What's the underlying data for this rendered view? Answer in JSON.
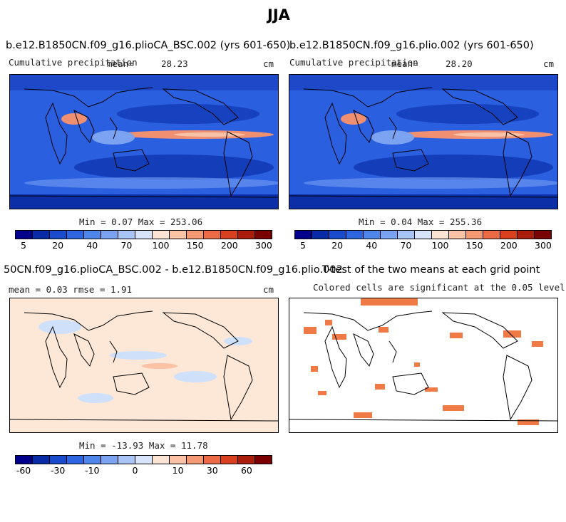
{
  "title": "JJA",
  "panels": {
    "p1": {
      "case": "b.e12.B1850CN.f09_g16.plioCA_BSC.002 (yrs 601-650)",
      "var": "Cumulative precipitation",
      "mean_label": "mean=",
      "mean": "28.23",
      "units": "cm",
      "minmax": "Min =   0.07 Max = 253.06"
    },
    "p2": {
      "case": "b.e12.B1850CN.f09_g16.plio.002 (yrs 601-650)",
      "var": "Cumulative precipitation",
      "mean_label": "mean=",
      "mean": "28.20",
      "units": "cm",
      "minmax": "Min =   0.04 Max = 255.36"
    },
    "p3": {
      "case": "50CN.f09_g16.plioCA_BSC.002 - b.e12.B1850CN.f09_g16.plio.002",
      "stats": "mean =    0.03    rmse =    1.91",
      "units": "cm",
      "minmax": "Min = -13.93 Max =  11.78"
    },
    "p4": {
      "case": "T-test of the two means at each grid point",
      "note": "Colored cells are significant at the 0.05 level"
    }
  },
  "colorbars": {
    "precip": {
      "colors": [
        "#00008b",
        "#0a2ba8",
        "#1a4bcc",
        "#2d66e0",
        "#4f86ec",
        "#7ba3f1",
        "#a9c4f6",
        "#d7e4fb",
        "#fde3d4",
        "#fbc2a5",
        "#f59974",
        "#ec6a45",
        "#d8401f",
        "#ab1d0b",
        "#7a0000"
      ],
      "ticks": [
        "5",
        "20",
        "40",
        "70",
        "100",
        "150",
        "200",
        "300"
      ]
    },
    "diff": {
      "colors": [
        "#00008b",
        "#0a2ba8",
        "#1a4bcc",
        "#2d66e0",
        "#4f86ec",
        "#7ba3f1",
        "#a9c4f6",
        "#d7e4fb",
        "#fde3d4",
        "#fbc2a5",
        "#f59974",
        "#ec6a45",
        "#d8401f",
        "#ab1d0b",
        "#7a0000"
      ],
      "ticks": [
        "-60",
        "-30",
        "-10",
        "0",
        "10",
        "30",
        "60"
      ]
    }
  },
  "map_colors": {
    "base_blue": "#2a5fe0",
    "dark_blue": "#0c2fa8",
    "light_blue": "#6b96ef",
    "itcz_red": "#f09070",
    "diff_bg": "#fde8d8",
    "diff_blue": "#cfe0fb",
    "signif": "#f07a45"
  }
}
